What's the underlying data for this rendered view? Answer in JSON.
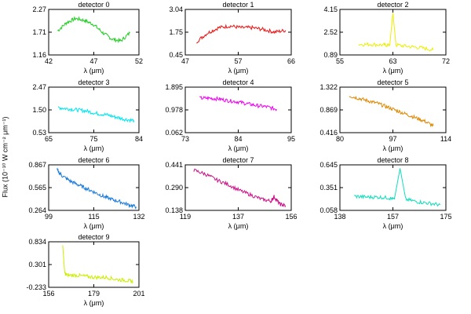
{
  "figure": {
    "ylabel": "Flux (10⁻¹⁰ W cm⁻² μm⁻¹)",
    "xlabel": "λ (μm)"
  },
  "chart_data": [
    {
      "type": "line",
      "title": "detector 0",
      "color": "#22cc22",
      "xlim": [
        42,
        52
      ],
      "ylim": [
        1.16,
        2.27
      ],
      "xticks": [
        "42",
        "47",
        "52"
      ],
      "yticks": [
        "1.16",
        "1.71",
        "2.27"
      ],
      "xlabel": "λ (μm)",
      "x": [
        43,
        44,
        45,
        46,
        47,
        48,
        49,
        50,
        51
      ],
      "y": [
        1.75,
        1.95,
        2.05,
        2.0,
        1.9,
        1.7,
        1.55,
        1.5,
        1.7
      ]
    },
    {
      "type": "line",
      "title": "detector 1",
      "color": "#ee1111",
      "xlim": [
        47,
        66
      ],
      "ylim": [
        0.45,
        3.04
      ],
      "xticks": [
        "47",
        "57",
        "66"
      ],
      "yticks": [
        "0.45",
        "1.75",
        "3.04"
      ],
      "xlabel": "λ (μm)",
      "x": [
        49,
        51,
        53,
        55,
        57,
        59,
        61,
        63,
        65
      ],
      "y": [
        1.2,
        1.7,
        2.0,
        2.1,
        2.0,
        2.0,
        1.9,
        1.75,
        1.85
      ]
    },
    {
      "type": "line",
      "title": "detector 2",
      "color": "#eeee00",
      "xlim": [
        55,
        72
      ],
      "ylim": [
        0.89,
        4.15
      ],
      "xticks": [
        "55",
        "63",
        "72"
      ],
      "yticks": [
        "0.89",
        "2.52",
        "4.15"
      ],
      "xlabel": "λ (μm)",
      "x": [
        58,
        60,
        62,
        63,
        63.5,
        64,
        66,
        68,
        70
      ],
      "y": [
        1.65,
        1.65,
        1.6,
        1.6,
        3.9,
        1.6,
        1.5,
        1.4,
        1.25
      ]
    },
    {
      "type": "line",
      "title": "detector 3",
      "color": "#00e5ee",
      "xlim": [
        65,
        84
      ],
      "ylim": [
        0.53,
        2.47
      ],
      "xticks": [
        "65",
        "75",
        "84"
      ],
      "yticks": [
        "0.53",
        "1.50",
        "2.47"
      ],
      "xlabel": "λ (μm)",
      "x": [
        67,
        69,
        71,
        73,
        75,
        77,
        79,
        81,
        83
      ],
      "y": [
        1.6,
        1.55,
        1.5,
        1.45,
        1.35,
        1.3,
        1.2,
        1.1,
        1.05
      ]
    },
    {
      "type": "line",
      "title": "detector 4",
      "color": "#ee00ee",
      "xlim": [
        73,
        95
      ],
      "ylim": [
        0.062,
        1.895
      ],
      "xticks": [
        "73",
        "84",
        "95"
      ],
      "yticks": [
        "0.062",
        "0.978",
        "1.895"
      ],
      "xlabel": "λ (μm)",
      "x": [
        76,
        78,
        80,
        82,
        84,
        86,
        88,
        90,
        92
      ],
      "y": [
        1.45,
        1.45,
        1.42,
        1.35,
        1.3,
        1.22,
        1.15,
        1.1,
        1.0
      ]
    },
    {
      "type": "line",
      "title": "detector 5",
      "color": "#dd8800",
      "xlim": [
        80,
        114
      ],
      "ylim": [
        0.416,
        1.322
      ],
      "xticks": [
        "80",
        "97",
        "114"
      ],
      "yticks": [
        "0.416",
        "0.869",
        "1.322"
      ],
      "xlabel": "λ (μm)",
      "x": [
        83,
        86,
        89,
        92,
        95,
        98,
        101,
        104,
        107,
        110
      ],
      "y": [
        1.15,
        1.1,
        1.05,
        1.0,
        0.93,
        0.86,
        0.79,
        0.72,
        0.65,
        0.55
      ]
    },
    {
      "type": "line",
      "title": "detector 6",
      "color": "#1a7ad9",
      "xlim": [
        99,
        132
      ],
      "ylim": [
        0.264,
        0.867
      ],
      "xticks": [
        "99",
        "115",
        "132"
      ],
      "yticks": [
        "0.264",
        "0.565",
        "0.867"
      ],
      "xlabel": "λ (μm)",
      "x": [
        102,
        104,
        107,
        110,
        113,
        116,
        119,
        122,
        125,
        128,
        131
      ],
      "y": [
        0.8,
        0.72,
        0.65,
        0.6,
        0.55,
        0.5,
        0.45,
        0.41,
        0.38,
        0.34,
        0.31
      ]
    },
    {
      "type": "line",
      "title": "detector 7",
      "color": "#cc1188",
      "xlim": [
        119,
        156
      ],
      "ylim": [
        0.138,
        0.441
      ],
      "xticks": [
        "119",
        "137",
        "156"
      ],
      "yticks": [
        "0.138",
        "0.290",
        "0.441"
      ],
      "xlabel": "λ (μm)",
      "x": [
        122,
        126,
        130,
        134,
        138,
        142,
        146,
        149,
        150,
        152,
        154
      ],
      "y": [
        0.405,
        0.38,
        0.34,
        0.31,
        0.27,
        0.24,
        0.21,
        0.2,
        0.23,
        0.18,
        0.17
      ]
    },
    {
      "type": "line",
      "title": "detector 8",
      "color": "#11ddbb",
      "xlim": [
        138,
        175
      ],
      "ylim": [
        0.058,
        0.645
      ],
      "xticks": [
        "138",
        "157",
        "175"
      ],
      "yticks": [
        "0.058",
        "0.351",
        "0.645"
      ],
      "xlabel": "λ (μm)",
      "x": [
        143,
        147,
        151,
        155,
        157,
        159,
        161,
        165,
        169,
        173
      ],
      "y": [
        0.24,
        0.23,
        0.23,
        0.22,
        0.2,
        0.6,
        0.2,
        0.17,
        0.15,
        0.13
      ]
    },
    {
      "type": "line",
      "title": "detector 9",
      "color": "#ccee00",
      "xlim": [
        156,
        201
      ],
      "ylim": [
        -0.233,
        0.834
      ],
      "xticks": [
        "156",
        "179",
        "201"
      ],
      "yticks": [
        "-0.233",
        "0.301",
        "0.834"
      ],
      "xlabel": "λ (μm)",
      "x": [
        163,
        164,
        165,
        170,
        175,
        180,
        185,
        190,
        195,
        198
      ],
      "y": [
        0.75,
        0.1,
        0.05,
        0.05,
        0.02,
        0.0,
        0.0,
        -0.05,
        -0.07,
        -0.1
      ]
    }
  ]
}
